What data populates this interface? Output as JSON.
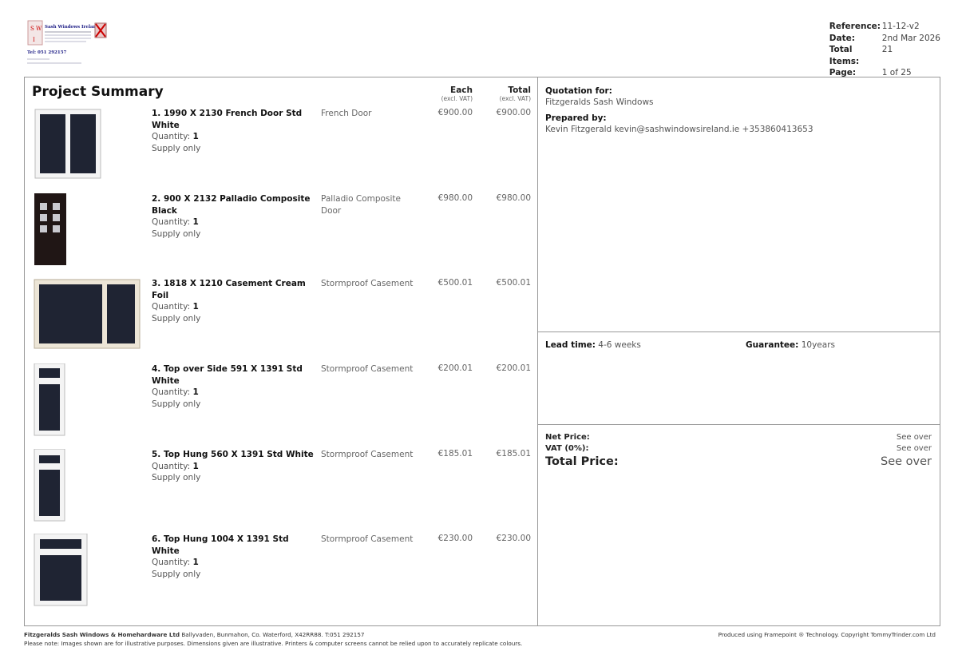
{
  "logo": {
    "initials": [
      "S",
      "W",
      "I"
    ],
    "name": "Sash Windows Ireland",
    "tel": "Tel: 051 292157"
  },
  "meta": {
    "reference_label": "Reference:",
    "reference": "11-12-v2",
    "date_label": "Date:",
    "date": "2nd Mar 2026",
    "total_items_label": "Total Items:",
    "total_items": "21",
    "page_label": "Page:",
    "page": "1 of 25"
  },
  "summary": {
    "title": "Project Summary",
    "each_label": "Each",
    "total_label": "Total",
    "excl_vat": "(excl. VAT)"
  },
  "items": [
    {
      "name": "1. 1990 X 2130 French Door Std White",
      "qty_label": "Quantity:",
      "qty": "1",
      "supply": "Supply only",
      "type": "French Door",
      "each": "€900.00",
      "total": "€900.00",
      "image": "french-door"
    },
    {
      "name": "2. 900 X 2132 Palladio Composite Black",
      "qty_label": "Quantity:",
      "qty": "1",
      "supply": "Supply only",
      "type": "Palladio Composite Door",
      "each": "€980.00",
      "total": "€980.00",
      "image": "composite-door"
    },
    {
      "name": "3. 1818 X 1210 Casement Cream Foil",
      "qty_label": "Quantity:",
      "qty": "1",
      "supply": "Supply only",
      "type": "Stormproof Casement",
      "each": "€500.01",
      "total": "€500.01",
      "image": "casement-cream"
    },
    {
      "name": "4. Top over Side 591 X 1391 Std White",
      "qty_label": "Quantity:",
      "qty": "1",
      "supply": "Supply only",
      "type": "Stormproof Casement",
      "each": "€200.01",
      "total": "€200.01",
      "image": "top-over-side"
    },
    {
      "name": "5. Top Hung 560 X 1391 Std White",
      "qty_label": "Quantity:",
      "qty": "1",
      "supply": "Supply only",
      "type": "Stormproof Casement",
      "each": "€185.01",
      "total": "€185.01",
      "image": "top-hung-narrow"
    },
    {
      "name": "6. Top Hung 1004 X 1391 Std White",
      "qty_label": "Quantity:",
      "qty": "1",
      "supply": "Supply only",
      "type": "Stormproof Casement",
      "each": "€230.00",
      "total": "€230.00",
      "image": "top-hung-wide"
    }
  ],
  "quotation": {
    "for_label": "Quotation for:",
    "for": "Fitzgeralds Sash Windows",
    "prepared_label": "Prepared by:",
    "prepared": "Kevin Fitzgerald kevin@sashwindowsireland.ie +353860413653"
  },
  "terms": {
    "lead_label": "Lead time:",
    "lead": "4-6 weeks",
    "guarantee_label": "Guarantee:",
    "guarantee": "10years"
  },
  "pricing": {
    "net_label": "Net Price:",
    "net": "See over",
    "vat_label": "VAT (0%):",
    "vat": "See over",
    "total_label": "Total Price:",
    "total": "See over"
  },
  "footer": {
    "company": "Fitzgeralds Sash Windows & Homehardware Ltd",
    "address": "Ballyvaden, Bunmahon, Co. Waterford, X42RR88. T:051 292157",
    "note": "Please note: Images shown are for illustrative purposes. Dimensions given are illustrative. Printers & computer screens cannot be relied upon to accurately replicate colours.",
    "produced": "Produced using Framepoint ® Technology. Copyright TommyTrinder.com Ltd"
  }
}
